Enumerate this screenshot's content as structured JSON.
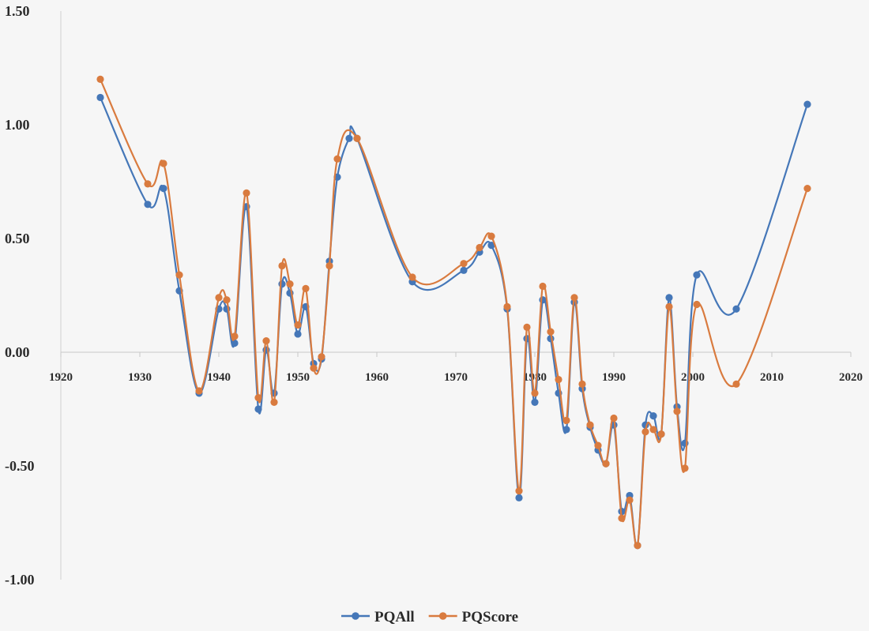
{
  "chart_data": {
    "type": "line",
    "title": "",
    "xlabel": "",
    "ylabel": "",
    "xlim": [
      1920,
      2020
    ],
    "ylim": [
      -1.0,
      1.5
    ],
    "x_ticks": [
      "1920",
      "1930",
      "1940",
      "1950",
      "1960",
      "1970",
      "1980",
      "1990",
      "2000",
      "2010",
      "2020"
    ],
    "y_ticks": [
      "1.50",
      "1.00",
      "0.50",
      "0.00",
      "-0.50",
      "-1.00"
    ],
    "grid": false,
    "smooth": true,
    "legend": "bottom",
    "series": [
      {
        "name": "PQAll",
        "color": "#4577b8",
        "points": [
          [
            1925,
            1.12
          ],
          [
            1931,
            0.65
          ],
          [
            1933,
            0.72
          ],
          [
            1935,
            0.27
          ],
          [
            1937.5,
            -0.18
          ],
          [
            1940,
            0.19
          ],
          [
            1941,
            0.19
          ],
          [
            1942,
            0.04
          ],
          [
            1943.5,
            0.64
          ],
          [
            1945,
            -0.25
          ],
          [
            1946,
            0.01
          ],
          [
            1947,
            -0.18
          ],
          [
            1948,
            0.3
          ],
          [
            1949,
            0.26
          ],
          [
            1950,
            0.08
          ],
          [
            1951,
            0.2
          ],
          [
            1952,
            -0.05
          ],
          [
            1953,
            -0.03
          ],
          [
            1954,
            0.4
          ],
          [
            1955,
            0.77
          ],
          [
            1956.5,
            0.94
          ],
          [
            1957.5,
            0.94
          ],
          [
            1964.5,
            0.31
          ],
          [
            1971,
            0.36
          ],
          [
            1973,
            0.44
          ],
          [
            1974.5,
            0.47
          ],
          [
            1976.5,
            0.19
          ],
          [
            1978,
            -0.64
          ],
          [
            1979,
            0.06
          ],
          [
            1980,
            -0.22
          ],
          [
            1981,
            0.23
          ],
          [
            1982,
            0.06
          ],
          [
            1983,
            -0.18
          ],
          [
            1984,
            -0.34
          ],
          [
            1985,
            0.22
          ],
          [
            1986,
            -0.16
          ],
          [
            1987,
            -0.33
          ],
          [
            1988,
            -0.43
          ],
          [
            1989,
            -0.49
          ],
          [
            1990,
            -0.32
          ],
          [
            1991,
            -0.7
          ],
          [
            1992,
            -0.63
          ],
          [
            1993,
            -0.85
          ],
          [
            1994,
            -0.32
          ],
          [
            1995,
            -0.28
          ],
          [
            1996,
            -0.36
          ],
          [
            1997,
            0.24
          ],
          [
            1998,
            -0.24
          ],
          [
            1999,
            -0.4
          ],
          [
            2000.5,
            0.34
          ],
          [
            2005.5,
            0.19
          ],
          [
            2014.5,
            1.09
          ]
        ]
      },
      {
        "name": "PQScore",
        "color": "#d97b3f",
        "points": [
          [
            1925,
            1.2
          ],
          [
            1931,
            0.74
          ],
          [
            1933,
            0.83
          ],
          [
            1935,
            0.34
          ],
          [
            1937.5,
            -0.17
          ],
          [
            1940,
            0.24
          ],
          [
            1941,
            0.23
          ],
          [
            1942,
            0.07
          ],
          [
            1943.5,
            0.7
          ],
          [
            1945,
            -0.2
          ],
          [
            1946,
            0.05
          ],
          [
            1947,
            -0.22
          ],
          [
            1948,
            0.38
          ],
          [
            1949,
            0.3
          ],
          [
            1950,
            0.12
          ],
          [
            1951,
            0.28
          ],
          [
            1952,
            -0.07
          ],
          [
            1953,
            -0.02
          ],
          [
            1954,
            0.38
          ],
          [
            1955,
            0.85
          ],
          [
            1957.5,
            0.94
          ],
          [
            1964.5,
            0.33
          ],
          [
            1971,
            0.39
          ],
          [
            1973,
            0.46
          ],
          [
            1974.5,
            0.51
          ],
          [
            1976.5,
            0.2
          ],
          [
            1978,
            -0.61
          ],
          [
            1979,
            0.11
          ],
          [
            1980,
            -0.18
          ],
          [
            1981,
            0.29
          ],
          [
            1982,
            0.09
          ],
          [
            1983,
            -0.12
          ],
          [
            1984,
            -0.3
          ],
          [
            1985,
            0.24
          ],
          [
            1986,
            -0.14
          ],
          [
            1987,
            -0.32
          ],
          [
            1988,
            -0.41
          ],
          [
            1989,
            -0.49
          ],
          [
            1990,
            -0.29
          ],
          [
            1991,
            -0.73
          ],
          [
            1992,
            -0.65
          ],
          [
            1993,
            -0.85
          ],
          [
            1994,
            -0.35
          ],
          [
            1995,
            -0.34
          ],
          [
            1996,
            -0.36
          ],
          [
            1997,
            0.2
          ],
          [
            1998,
            -0.26
          ],
          [
            1999,
            -0.51
          ],
          [
            2000.5,
            0.21
          ],
          [
            2005.5,
            -0.14
          ],
          [
            2014.5,
            0.72
          ]
        ]
      }
    ]
  }
}
